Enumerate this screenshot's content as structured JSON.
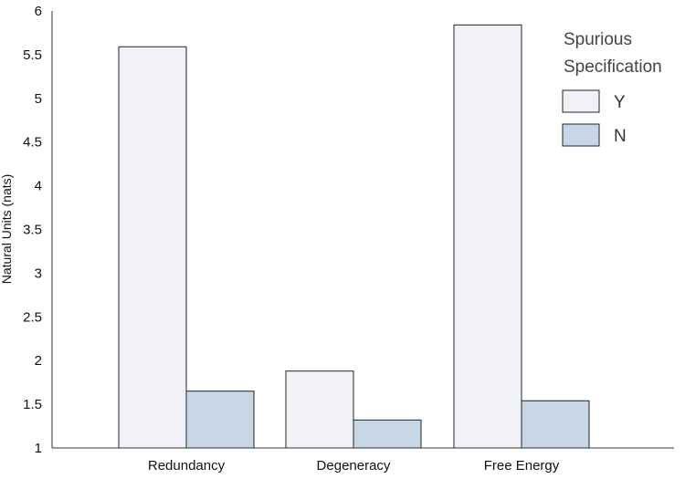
{
  "chart_data": {
    "type": "bar",
    "title": "",
    "xlabel": "",
    "ylabel": "Natural Units (nats)",
    "categories": [
      "Redundancy",
      "Degeneracy",
      "Free Energy"
    ],
    "series": [
      {
        "name": "Y",
        "values": [
          5.59,
          1.88,
          5.84
        ],
        "color": "#f0f2f7"
      },
      {
        "name": "N",
        "values": [
          1.65,
          1.32,
          1.54
        ],
        "color": "#c8d7e5"
      }
    ],
    "ylim": [
      1,
      6
    ],
    "yticks": [
      "1",
      "1.5",
      "2",
      "2.5",
      "3",
      "3.5",
      "4",
      "4.5",
      "5",
      "5.5",
      "6"
    ],
    "grid": false,
    "legend": {
      "title_lines": [
        "Spurious",
        "Specification"
      ],
      "placement": "top-right"
    },
    "colors": {
      "axis": "#333333",
      "bar_stroke": "#222222"
    }
  }
}
